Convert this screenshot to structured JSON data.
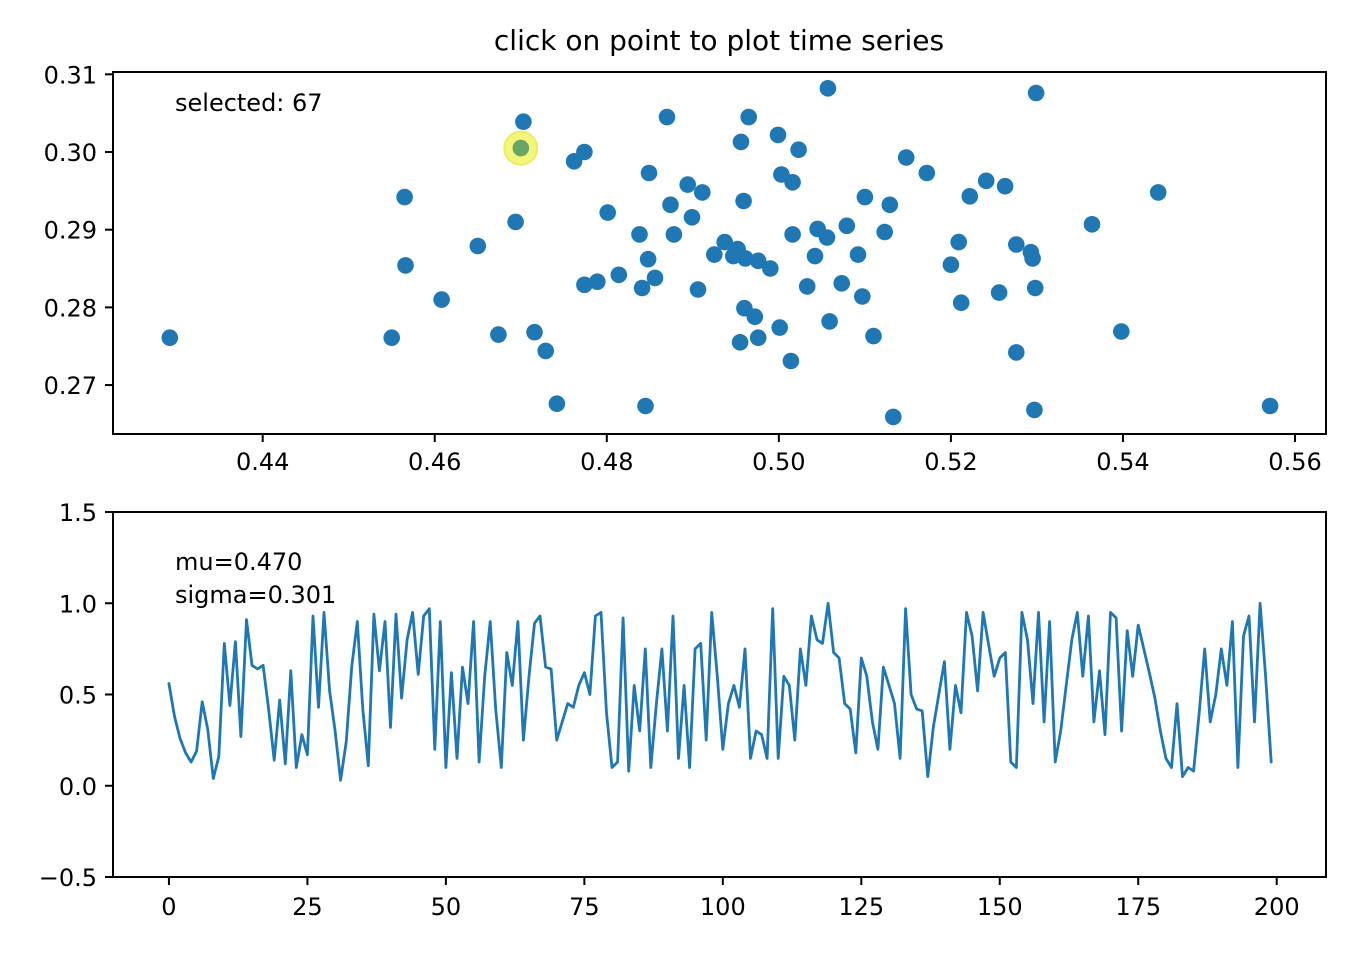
{
  "figure": {
    "title": "click on point to plot time series",
    "background_color": "#ffffff",
    "text_color": "#000000"
  },
  "scatter": {
    "annotation": "selected: 67",
    "selected_index": "67"
  },
  "timeseries": {
    "mu_label": "mu=0.470",
    "sigma_label": "sigma=0.301"
  },
  "chart_data": [
    {
      "type": "scatter",
      "title": "click on point to plot time series",
      "xlabel": "",
      "ylabel": "",
      "xlim": [
        0.4226,
        0.5636
      ],
      "ylim": [
        0.2637,
        0.3103
      ],
      "grid": false,
      "xticks": [
        0.44,
        0.46,
        0.48,
        0.5,
        0.52,
        0.54,
        0.56
      ],
      "xtick_labels": [
        "0.44",
        "0.46",
        "0.48",
        "0.50",
        "0.52",
        "0.54",
        "0.56"
      ],
      "yticks": [
        0.31,
        0.3,
        0.29,
        0.28,
        0.27
      ],
      "ytick_labels": [
        "0.31",
        "0.30",
        "0.29",
        "0.28",
        "0.27"
      ],
      "point_color": "#1f77b4",
      "annotation": "selected: 67",
      "selected_point": {
        "x": 0.47,
        "y": 0.3005,
        "index": 67,
        "fill_color": "#69a564",
        "halo_color": "#f3f66e",
        "halo_edge_color": "#e8ec52"
      },
      "points": [
        [
          0.4703,
          0.3039
        ],
        [
          0.4565,
          0.2942
        ],
        [
          0.4694,
          0.291
        ],
        [
          0.465,
          0.2879
        ],
        [
          0.5057,
          0.3082
        ],
        [
          0.487,
          0.3045
        ],
        [
          0.4965,
          0.3045
        ],
        [
          0.4956,
          0.3013
        ],
        [
          0.4999,
          0.3022
        ],
        [
          0.5023,
          0.3003
        ],
        [
          0.4774,
          0.3
        ],
        [
          0.4762,
          0.2988
        ],
        [
          0.5148,
          0.2993
        ],
        [
          0.5172,
          0.2973
        ],
        [
          0.4849,
          0.2973
        ],
        [
          0.4894,
          0.2958
        ],
        [
          0.4911,
          0.2948
        ],
        [
          0.5003,
          0.2971
        ],
        [
          0.5016,
          0.2961
        ],
        [
          0.4959,
          0.2937
        ],
        [
          0.51,
          0.2942
        ],
        [
          0.5129,
          0.2932
        ],
        [
          0.4874,
          0.2932
        ],
        [
          0.4801,
          0.2922
        ],
        [
          0.4899,
          0.2916
        ],
        [
          0.4838,
          0.2894
        ],
        [
          0.4878,
          0.2894
        ],
        [
          0.4937,
          0.2884
        ],
        [
          0.4952,
          0.2875
        ],
        [
          0.5016,
          0.2894
        ],
        [
          0.5045,
          0.2901
        ],
        [
          0.5056,
          0.289
        ],
        [
          0.5079,
          0.2905
        ],
        [
          0.5123,
          0.2897
        ],
        [
          0.5092,
          0.2868
        ],
        [
          0.5299,
          0.3076
        ],
        [
          0.5241,
          0.2963
        ],
        [
          0.5263,
          0.2956
        ],
        [
          0.5222,
          0.2943
        ],
        [
          0.5441,
          0.2948
        ],
        [
          0.5364,
          0.2907
        ],
        [
          0.5209,
          0.2884
        ],
        [
          0.5276,
          0.2881
        ],
        [
          0.5293,
          0.2871
        ],
        [
          0.4566,
          0.2854
        ],
        [
          0.4608,
          0.281
        ],
        [
          0.4292,
          0.2761
        ],
        [
          0.455,
          0.2761
        ],
        [
          0.4674,
          0.2765
        ],
        [
          0.4774,
          0.2829
        ],
        [
          0.4789,
          0.2833
        ],
        [
          0.4814,
          0.2842
        ],
        [
          0.4848,
          0.2862
        ],
        [
          0.4841,
          0.2825
        ],
        [
          0.4856,
          0.2838
        ],
        [
          0.4906,
          0.2823
        ],
        [
          0.4947,
          0.2866
        ],
        [
          0.4961,
          0.2863
        ],
        [
          0.4976,
          0.286
        ],
        [
          0.499,
          0.285
        ],
        [
          0.496,
          0.2799
        ],
        [
          0.4972,
          0.2788
        ],
        [
          0.4955,
          0.2755
        ],
        [
          0.4976,
          0.2761
        ],
        [
          0.5001,
          0.2774
        ],
        [
          0.5014,
          0.2731
        ],
        [
          0.5033,
          0.2827
        ],
        [
          0.5042,
          0.2866
        ],
        [
          0.5059,
          0.2782
        ],
        [
          0.5073,
          0.2831
        ],
        [
          0.5097,
          0.2814
        ],
        [
          0.511,
          0.2763
        ],
        [
          0.4716,
          0.2768
        ],
        [
          0.4729,
          0.2744
        ],
        [
          0.4742,
          0.2676
        ],
        [
          0.4845,
          0.2673
        ],
        [
          0.5133,
          0.2659
        ],
        [
          0.52,
          0.2855
        ],
        [
          0.5212,
          0.2806
        ],
        [
          0.5256,
          0.2819
        ],
        [
          0.5295,
          0.2863
        ],
        [
          0.5298,
          0.2825
        ],
        [
          0.5398,
          0.2769
        ],
        [
          0.5276,
          0.2742
        ],
        [
          0.5297,
          0.2668
        ],
        [
          0.5571,
          0.2673
        ],
        [
          0.4925,
          0.2868
        ]
      ]
    },
    {
      "type": "line",
      "xlabel": "",
      "ylabel": "",
      "xlim": [
        -10.1,
        208.9
      ],
      "ylim": [
        -0.5,
        1.5
      ],
      "grid": false,
      "xticks": [
        0,
        25,
        50,
        75,
        100,
        125,
        150,
        175,
        200
      ],
      "xtick_labels": [
        "0",
        "25",
        "50",
        "75",
        "100",
        "125",
        "150",
        "175",
        "200"
      ],
      "yticks": [
        1.5,
        1.0,
        0.5,
        0.0,
        -0.5
      ],
      "ytick_labels": [
        "1.5",
        "1.0",
        "0.5",
        "0.0",
        "−0.5"
      ],
      "line_color": "#1f77b4",
      "annotations": [
        "mu=0.470",
        "sigma=0.301"
      ],
      "x_start": 0,
      "x_step": 1,
      "values": [
        0.56,
        0.38,
        0.26,
        0.18,
        0.13,
        0.19,
        0.46,
        0.31,
        0.04,
        0.16,
        0.78,
        0.44,
        0.79,
        0.27,
        0.91,
        0.66,
        0.64,
        0.66,
        0.42,
        0.14,
        0.47,
        0.12,
        0.63,
        0.1,
        0.28,
        0.17,
        0.93,
        0.43,
        0.95,
        0.52,
        0.3,
        0.03,
        0.24,
        0.65,
        0.9,
        0.42,
        0.11,
        0.94,
        0.63,
        0.9,
        0.32,
        0.94,
        0.48,
        0.8,
        0.95,
        0.61,
        0.93,
        0.97,
        0.2,
        0.9,
        0.1,
        0.62,
        0.15,
        0.65,
        0.45,
        0.9,
        0.13,
        0.6,
        0.9,
        0.42,
        0.1,
        0.73,
        0.55,
        0.9,
        0.25,
        0.6,
        0.89,
        0.93,
        0.65,
        0.64,
        0.25,
        0.35,
        0.45,
        0.43,
        0.55,
        0.62,
        0.5,
        0.93,
        0.95,
        0.4,
        0.1,
        0.13,
        0.92,
        0.08,
        0.55,
        0.3,
        0.75,
        0.1,
        0.45,
        0.75,
        0.3,
        0.93,
        0.15,
        0.55,
        0.1,
        0.75,
        0.78,
        0.25,
        0.95,
        0.6,
        0.2,
        0.45,
        0.55,
        0.43,
        0.75,
        0.15,
        0.3,
        0.28,
        0.15,
        0.97,
        0.15,
        0.6,
        0.55,
        0.25,
        0.75,
        0.55,
        0.93,
        0.8,
        0.78,
        1.0,
        0.73,
        0.7,
        0.45,
        0.42,
        0.18,
        0.7,
        0.6,
        0.35,
        0.2,
        0.65,
        0.55,
        0.45,
        0.15,
        0.97,
        0.5,
        0.42,
        0.41,
        0.05,
        0.32,
        0.5,
        0.68,
        0.2,
        0.55,
        0.4,
        0.95,
        0.82,
        0.52,
        0.95,
        0.77,
        0.6,
        0.7,
        0.73,
        0.13,
        0.1,
        0.95,
        0.8,
        0.45,
        0.95,
        0.35,
        0.9,
        0.13,
        0.3,
        0.55,
        0.8,
        0.95,
        0.6,
        0.93,
        0.35,
        0.63,
        0.28,
        0.95,
        0.92,
        0.3,
        0.85,
        0.6,
        0.88,
        0.75,
        0.62,
        0.48,
        0.3,
        0.15,
        0.1,
        0.45,
        0.05,
        0.1,
        0.08,
        0.4,
        0.75,
        0.35,
        0.5,
        0.75,
        0.55,
        0.9,
        0.1,
        0.82,
        0.93,
        0.35,
        1.0,
        0.6,
        0.13
      ]
    }
  ]
}
